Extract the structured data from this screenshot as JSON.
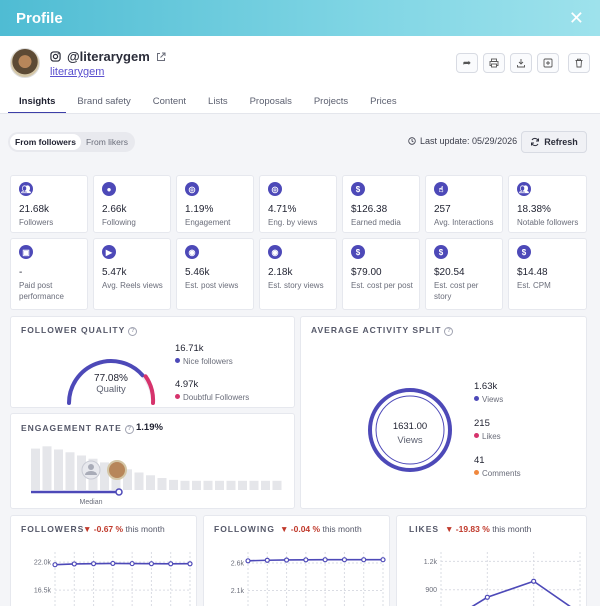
{
  "header": {
    "title": "Profile",
    "close_icon": "close-icon"
  },
  "profile": {
    "handle": "@literarygem",
    "username": "literarygem"
  },
  "tabs": [
    "Insights",
    "Brand safety",
    "Content",
    "Lists",
    "Proposals",
    "Projects",
    "Prices"
  ],
  "filter": {
    "options": [
      "From followers",
      "From likers"
    ],
    "selected": "From followers"
  },
  "last_update": "Last update: 05/29/2026",
  "refresh_label": "Refresh",
  "stats_row1": [
    {
      "value": "21.68k",
      "label": "Followers",
      "icon": "users-icon"
    },
    {
      "value": "2.66k",
      "label": "Following",
      "icon": "user-icon"
    },
    {
      "value": "1.19%",
      "label": "Engagement",
      "icon": "target-icon"
    },
    {
      "value": "4.71%",
      "label": "Eng. by views",
      "icon": "target-icon"
    },
    {
      "value": "$126.38",
      "label": "Earned media",
      "icon": "dollar-icon"
    },
    {
      "value": "257",
      "label": "Avg. Interactions",
      "icon": "hand-icon"
    },
    {
      "value": "18.38%",
      "label": "Notable followers",
      "icon": "users-icon"
    }
  ],
  "stats_row2": [
    {
      "value": "-",
      "label": "Paid post performance",
      "icon": "paid-post-icon"
    },
    {
      "value": "5.47k",
      "label": "Avg. Reels views",
      "icon": "play-icon"
    },
    {
      "value": "5.46k",
      "label": "Est. post views",
      "icon": "eye-icon"
    },
    {
      "value": "2.18k",
      "label": "Est. story views",
      "icon": "eye-icon"
    },
    {
      "value": "$79.00",
      "label": "Est. cost per post",
      "icon": "dollar-icon"
    },
    {
      "value": "$20.54",
      "label": "Est. cost per story",
      "icon": "dollar-icon"
    },
    {
      "value": "$14.48",
      "label": "Est. CPM",
      "icon": "dollar-icon"
    }
  ],
  "follower_quality": {
    "title": "FOLLOWER QUALITY",
    "percent": "77.08%",
    "percent_value": 77.08,
    "center_label": "Quality",
    "nice_value": "16.71k",
    "nice_label": "Nice followers",
    "doubtful_value": "4.97k",
    "doubtful_label": "Doubtful Followers"
  },
  "engagement_rate": {
    "title": "ENGAGEMENT RATE",
    "value": "1.19%",
    "median_label": "Median",
    "histogram": [
      0.9,
      0.95,
      0.88,
      0.82,
      0.75,
      0.68,
      0.6,
      0.52,
      0.45,
      0.38,
      0.32,
      0.26,
      0.22,
      0.2,
      0.2,
      0.2,
      0.2,
      0.2,
      0.2,
      0.2,
      0.2,
      0.2
    ]
  },
  "activity_split": {
    "title": "AVERAGE ACTIVITY SPLIT",
    "center_value": "1631.00",
    "center_label": "Views",
    "items": [
      {
        "value": "1.63k",
        "label": "Views",
        "color": "#4d49b8"
      },
      {
        "value": "215",
        "label": "Likes",
        "color": "#d6336c"
      },
      {
        "value": "41",
        "label": "Comments",
        "color": "#f0883e"
      }
    ]
  },
  "colors": {
    "accent": "#4d49b8",
    "doubtful": "#d6336c",
    "comments": "#f0883e",
    "negative": "#c0392b"
  },
  "chart_data": [
    {
      "type": "line",
      "title": "FOLLOWERS",
      "change": "-0.67 %",
      "period": "this month",
      "y_ticks": [
        "22.0k",
        "16.5k"
      ],
      "y_tick_values": [
        22000,
        16500
      ],
      "ylim": [
        11000,
        24000
      ],
      "values": [
        21500,
        21650,
        21700,
        21750,
        21720,
        21700,
        21680,
        21690
      ]
    },
    {
      "type": "line",
      "title": "FOLLOWING",
      "change": "-0.04 %",
      "period": "this month",
      "y_ticks": [
        "2.6k",
        "2.1k"
      ],
      "y_tick_values": [
        2600,
        2100
      ],
      "ylim": [
        1600,
        2800
      ],
      "values": [
        2640,
        2650,
        2655,
        2658,
        2660,
        2660,
        2660,
        2660
      ]
    },
    {
      "type": "line",
      "title": "LIKES",
      "change": "-19.83 %",
      "period": "this month",
      "y_ticks": [
        "1.2k",
        "900"
      ],
      "y_tick_values": [
        1200,
        900
      ],
      "ylim": [
        600,
        1300
      ],
      "values": [
        520,
        820,
        990,
        650
      ]
    }
  ]
}
